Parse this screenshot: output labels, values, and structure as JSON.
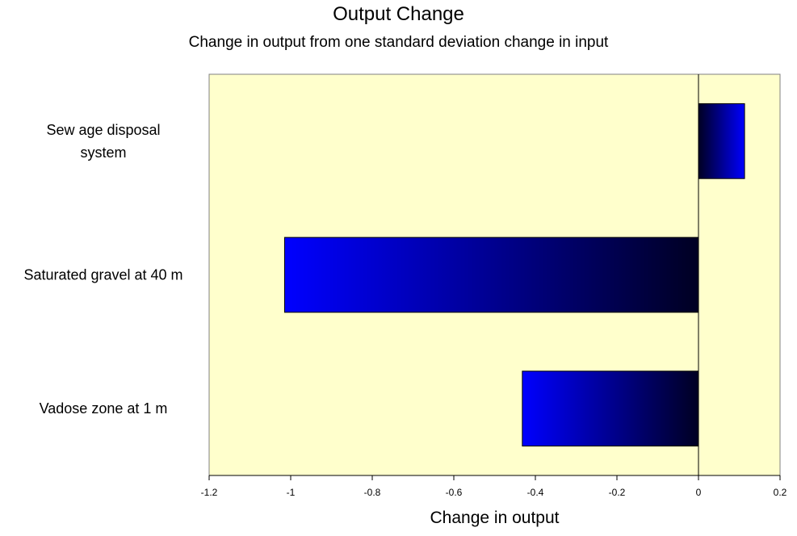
{
  "chart_data": {
    "type": "bar",
    "orientation": "horizontal",
    "title": "Output Change",
    "subtitle": "Change in output from one standard deviation change in input",
    "xlabel": "Change in output",
    "ylabel": "",
    "categories": [
      [
        "Sew age disposal",
        "system"
      ],
      [
        "Saturated gravel at 40 m"
      ],
      [
        "Vadose zone at 1 m"
      ]
    ],
    "values": [
      0.113,
      -1.015,
      -0.432
    ],
    "xlim": [
      -1.2,
      0.2
    ],
    "xticks": [
      -1.2,
      -1,
      -0.8,
      -0.6,
      -0.4,
      -0.2,
      0,
      0.2
    ],
    "xtick_labels": [
      "-1.2",
      "-1",
      "-0.8",
      "-0.6",
      "-0.4",
      "-0.2",
      "0",
      "0.2"
    ],
    "grid": false,
    "legend": "none",
    "colors": {
      "plot_background": "#ffffcc",
      "bar_light": "#0000ff",
      "bar_dark": "#000022",
      "axis": "#000000"
    }
  }
}
